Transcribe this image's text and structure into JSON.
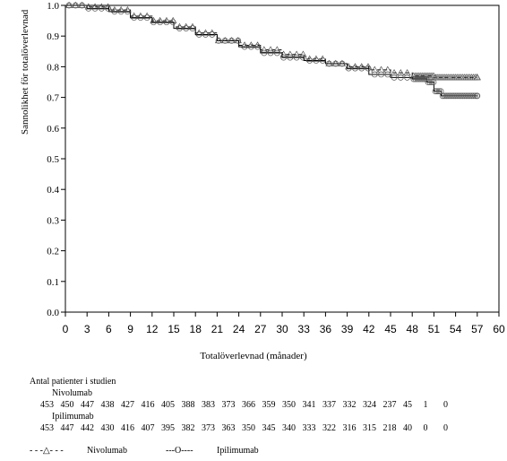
{
  "chart_data": {
    "type": "line",
    "xlabel": "Totalöverlevnad (månader)",
    "ylabel": "Sannolikhet för totalöverlevnad",
    "xlim": [
      0,
      60
    ],
    "ylim": [
      0.0,
      1.0
    ],
    "xticks": [
      "0",
      "3",
      "6",
      "9",
      "12",
      "15",
      "18",
      "21",
      "24",
      "27",
      "30",
      "33",
      "36",
      "39",
      "42",
      "45",
      "48",
      "51",
      "54",
      "57",
      "60"
    ],
    "yticks": [
      "0.0",
      "0.1",
      "0.2",
      "0.3",
      "0.4",
      "0.5",
      "0.6",
      "0.7",
      "0.8",
      "0.9",
      "1.0"
    ],
    "grid": false,
    "series": [
      {
        "name": "Nivolumab",
        "line_style": "dashed",
        "marker": "triangle",
        "x": [
          0,
          3,
          6,
          9,
          12,
          15,
          18,
          21,
          24,
          27,
          30,
          33,
          36,
          39,
          42,
          45,
          48,
          51,
          54,
          57
        ],
        "y": [
          1.0,
          0.995,
          0.985,
          0.965,
          0.95,
          0.93,
          0.91,
          0.885,
          0.87,
          0.855,
          0.84,
          0.825,
          0.81,
          0.8,
          0.79,
          0.78,
          0.77,
          0.765,
          0.765,
          0.765
        ]
      },
      {
        "name": "Ipilimumab",
        "line_style": "solid",
        "marker": "circle",
        "x": [
          0,
          3,
          6,
          9,
          12,
          15,
          18,
          21,
          24,
          27,
          30,
          33,
          36,
          39,
          42,
          45,
          48,
          50,
          51,
          52,
          54,
          57
        ],
        "y": [
          1.0,
          0.99,
          0.98,
          0.96,
          0.945,
          0.925,
          0.905,
          0.885,
          0.865,
          0.845,
          0.83,
          0.82,
          0.81,
          0.795,
          0.775,
          0.765,
          0.76,
          0.75,
          0.72,
          0.705,
          0.705,
          0.705
        ]
      }
    ]
  },
  "risk_table": {
    "title": "Antal patienter i studien",
    "groups": [
      {
        "name": "Nivolumab",
        "counts": [
          "453",
          "450",
          "447",
          "438",
          "427",
          "416",
          "405",
          "388",
          "383",
          "373",
          "366",
          "359",
          "350",
          "341",
          "337",
          "332",
          "324",
          "237",
          "45",
          "1",
          "0"
        ]
      },
      {
        "name": "Ipilimumab",
        "counts": [
          "453",
          "447",
          "442",
          "430",
          "416",
          "407",
          "395",
          "382",
          "373",
          "363",
          "350",
          "345",
          "340",
          "333",
          "322",
          "316",
          "315",
          "218",
          "40",
          "0",
          "0"
        ]
      }
    ]
  },
  "legend": {
    "nivolumab_symbol": "- - -△- - -",
    "nivolumab_label": "Nivolumab",
    "ipilimumab_symbol": "---O----",
    "ipilimumab_label": "Ipilimumab"
  },
  "colors": {
    "line": "#000000",
    "marker_stroke": "#555555"
  }
}
